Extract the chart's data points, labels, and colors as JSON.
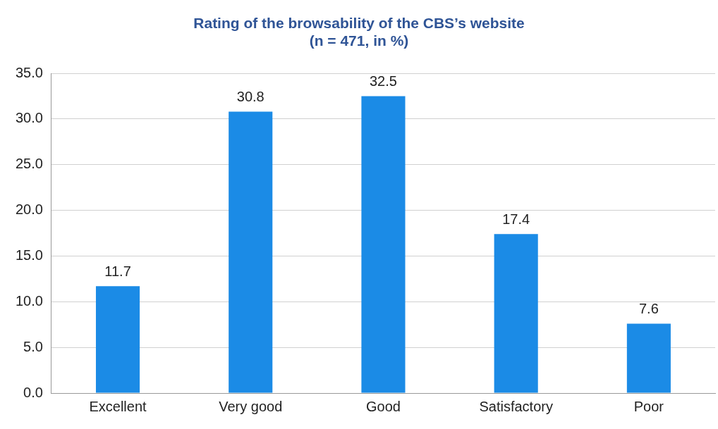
{
  "chart_data": {
    "type": "bar",
    "title": "Rating of the browsability of the CBS’s website\n(n = 471, in %)",
    "categories": [
      "Excellent",
      "Very good",
      "Good",
      "Satisfactory",
      "Poor"
    ],
    "values": [
      11.7,
      30.8,
      32.5,
      17.4,
      7.6
    ],
    "color": "#1b8be6",
    "ylim": [
      0,
      35
    ],
    "yticks": [
      {
        "value": 0,
        "label": "0.0"
      },
      {
        "value": 5,
        "label": "5.0"
      },
      {
        "value": 10,
        "label": "10.0"
      },
      {
        "value": 15,
        "label": "15.0"
      },
      {
        "value": 20,
        "label": "20.0"
      },
      {
        "value": 25,
        "label": "25.0"
      },
      {
        "value": 30,
        "label": "30.0"
      },
      {
        "value": 35,
        "label": "35.0"
      }
    ],
    "grid": "y",
    "data_labels": true
  }
}
